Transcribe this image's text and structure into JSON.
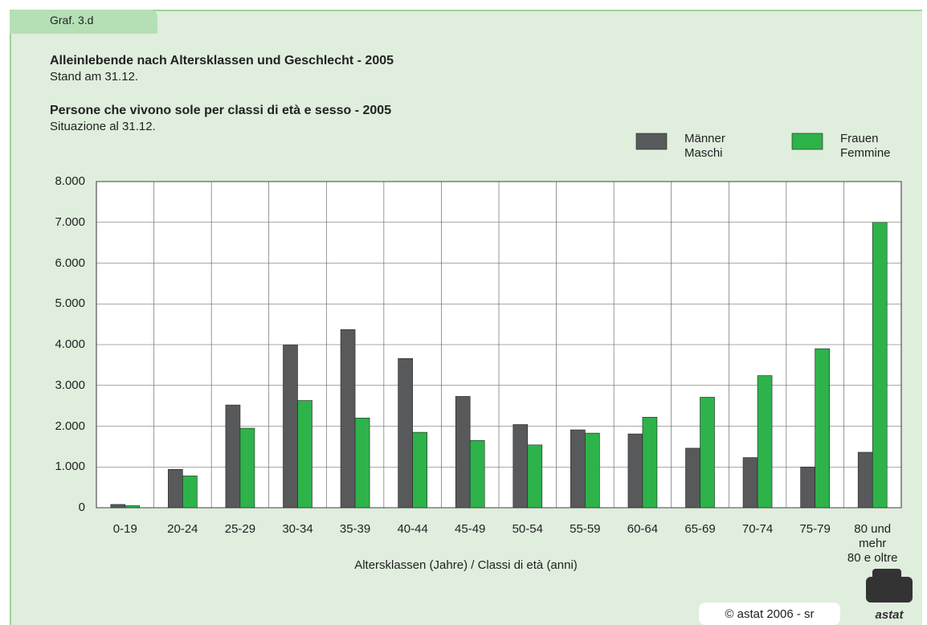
{
  "chart_data": {
    "type": "bar",
    "tab": "Graf. 3.d",
    "title": "Alleinlebende nach Altersklassen und Geschlecht - 2005",
    "subtitle": "Stand am 31.12.",
    "title_it": "Persone che vivono sole per classi di età e sesso - 2005",
    "subtitle_it": "Situazione al 31.12.",
    "x_label": "Altersklassen (Jahre) / Classi di età (anni)",
    "footer": "© astat 2006 - sr",
    "logo": "astat",
    "categories": [
      "0-19",
      "20-24",
      "25-29",
      "30-34",
      "35-39",
      "40-44",
      "45-49",
      "50-54",
      "55-59",
      "60-64",
      "65-69",
      "70-74",
      "75-79",
      "80 und\nmehr\n80 e oltre"
    ],
    "series": [
      {
        "name": "Männer\nMaschi",
        "color": "#58595b",
        "values": [
          80,
          940,
          2520,
          3990,
          4370,
          3660,
          2730,
          2040,
          1910,
          1810,
          1460,
          1230,
          1000,
          1360
        ]
      },
      {
        "name": "Frauen\nFemmine",
        "color": "#2db34a",
        "values": [
          50,
          780,
          1950,
          2630,
          2200,
          1850,
          1650,
          1540,
          1830,
          2220,
          2710,
          3240,
          3900,
          7000
        ]
      }
    ],
    "ylim": [
      0,
      8000
    ],
    "yticks": [
      0,
      {
        "value": 1000,
        "label": "1.000"
      },
      {
        "value": 2000,
        "label": "2.000"
      },
      {
        "value": 3000,
        "label": "3.000"
      },
      {
        "value": 4000,
        "label": "4.000"
      },
      {
        "value": 5000,
        "label": "5.000"
      },
      {
        "value": 6000,
        "label": "6.000"
      },
      {
        "value": 7000,
        "label": "7.000"
      },
      {
        "value": 8000,
        "label": "8.000"
      }
    ],
    "grid": true
  }
}
